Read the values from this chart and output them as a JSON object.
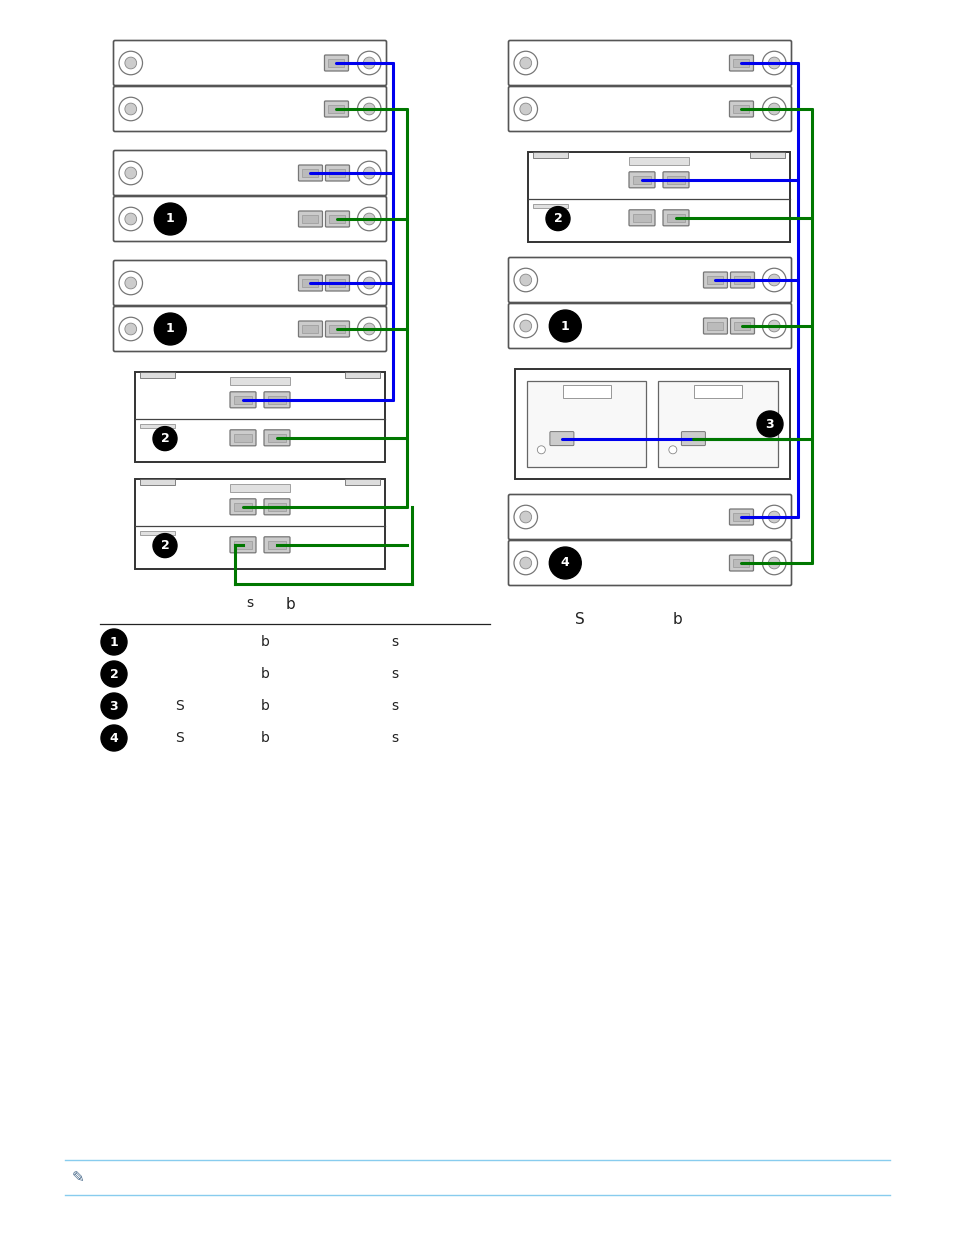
{
  "bg_color": "#ffffff",
  "blue_color": "#0000ee",
  "green_color": "#007700",
  "dark_color": "#222222",
  "light_gray": "#d8d8d8",
  "mid_gray": "#999999",
  "dark_gray": "#666666",
  "legend_items": [
    {
      "num": "1",
      "col2": "b",
      "col3": "s"
    },
    {
      "num": "2",
      "col2": "b",
      "col3": "s"
    },
    {
      "num": "3",
      "col1": "S",
      "col2": "b",
      "col3": "s"
    },
    {
      "num": "4",
      "col1": "S",
      "col2": "b",
      "col3": "s"
    }
  ],
  "left_label_b": "b",
  "left_label_s": "s",
  "right_label_S": "S",
  "right_label_b": "b"
}
